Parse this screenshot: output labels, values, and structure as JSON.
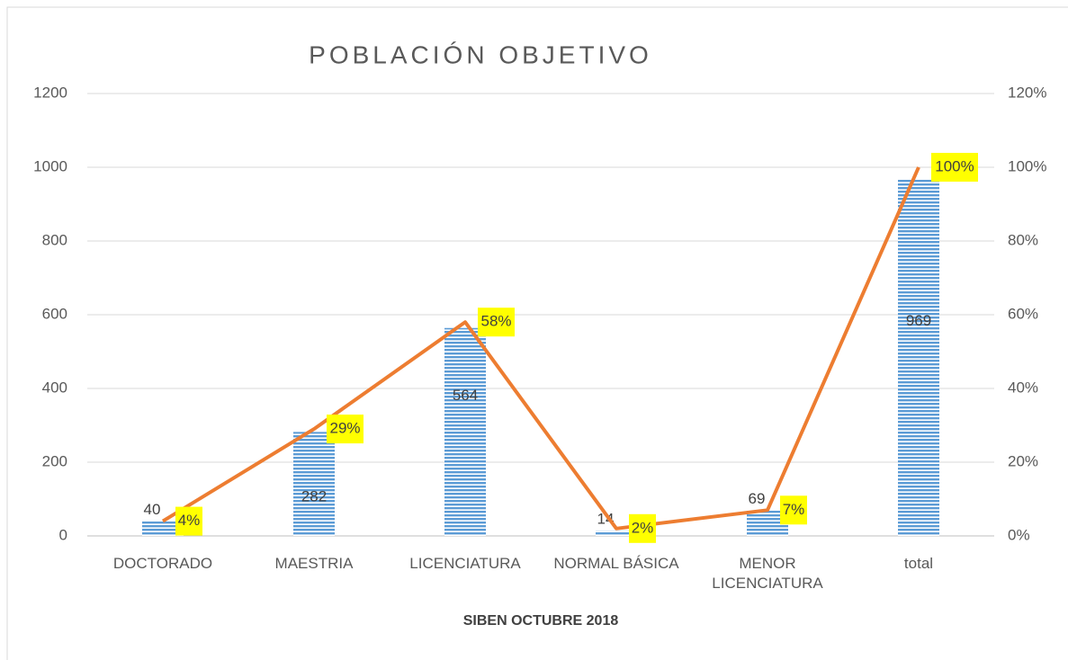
{
  "chart_data": {
    "type": "bar",
    "title": "POBLACIÓN OBJETIVO",
    "x_label": "SIBEN OCTUBRE 2018",
    "categories": [
      "DOCTORADO",
      "MAESTRIA",
      "LICENCIATURA",
      "NORMAL BÁSICA",
      "MENOR LICENCIATURA",
      "total"
    ],
    "series": [
      {
        "type": "bar",
        "color": "#5b9bd5",
        "values": [
          40,
          282,
          564,
          14,
          69,
          969
        ]
      },
      {
        "type": "line",
        "axis": "y2",
        "color": "#ed7d31",
        "values": [
          4,
          29,
          58,
          2,
          7,
          100
        ],
        "value_labels": [
          "4%",
          "29%",
          "58%",
          "2%",
          "7%",
          "100%"
        ]
      }
    ],
    "ylim": [
      0,
      1200
    ],
    "yticks": [
      0,
      200,
      400,
      600,
      800,
      1000,
      1200
    ],
    "y2lim": [
      0,
      120
    ],
    "y2ticks": [
      {
        "value": 0,
        "label": "0%"
      },
      {
        "value": 20,
        "label": "20%"
      },
      {
        "value": 40,
        "label": "40%"
      },
      {
        "value": 60,
        "label": "60%"
      },
      {
        "value": 80,
        "label": "80%"
      },
      {
        "value": 100,
        "label": "100%"
      },
      {
        "value": 120,
        "label": "120%"
      }
    ],
    "grid": true
  }
}
